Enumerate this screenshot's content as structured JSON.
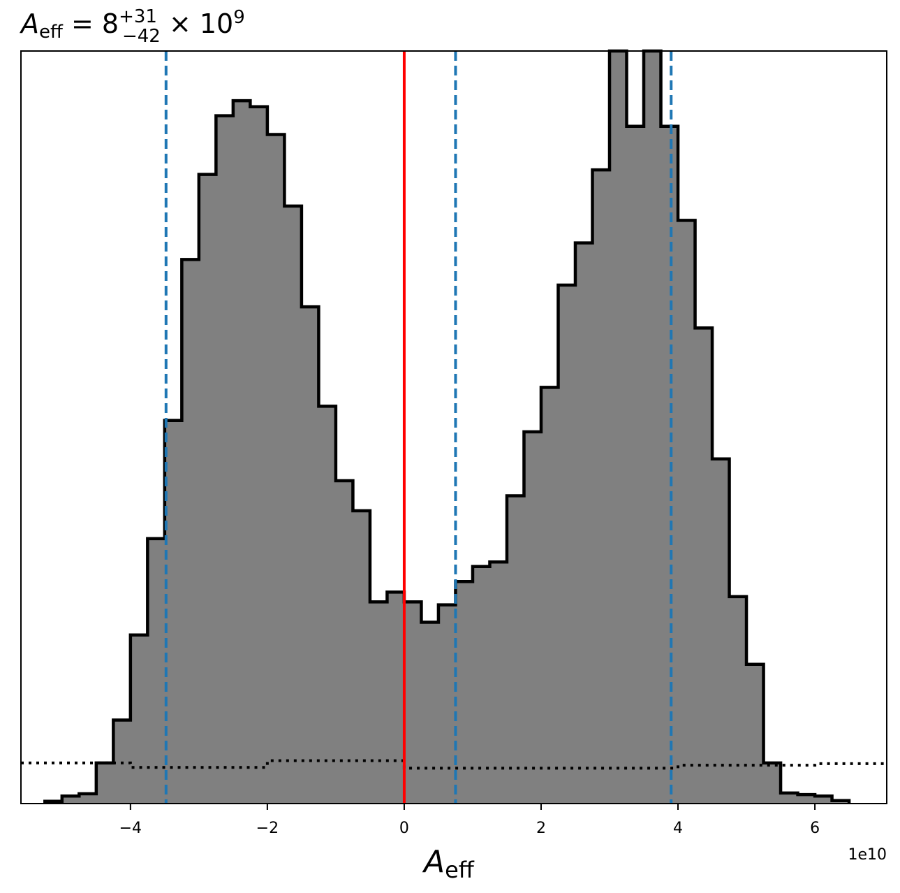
{
  "chart_data": {
    "type": "histogram",
    "title": {
      "symbol": "A",
      "symbol_sub": "eff",
      "equals": " = 8",
      "sup": "+31",
      "sub": "−42",
      "tail": " × 10",
      "tail_sup": "9"
    },
    "xlabel": {
      "symbol": "A",
      "sub": "eff"
    },
    "ylabel": "",
    "x_offset_label": "1e10",
    "xlim": [
      -5.6,
      7.05
    ],
    "ylim": [
      0,
      1.0
    ],
    "xticks": [
      -4,
      -2,
      0,
      2,
      4,
      6
    ],
    "xtick_labels": [
      "−4",
      "−2",
      "0",
      "2",
      "4",
      "6"
    ],
    "yticks_shown": false,
    "bin_edges": [
      -5.25,
      -5.0,
      -4.75,
      -4.5,
      -4.25,
      -4.0,
      -3.75,
      -3.5,
      -3.25,
      -3.0,
      -2.75,
      -2.5,
      -2.25,
      -2.0,
      -1.75,
      -1.5,
      -1.25,
      -1.0,
      -0.75,
      -0.5,
      -0.25,
      0.0,
      0.25,
      0.5,
      0.75,
      1.0,
      1.25,
      1.5,
      1.75,
      2.0,
      2.25,
      2.5,
      2.75,
      3.0,
      3.25,
      3.5,
      3.75,
      4.0,
      4.25,
      4.5,
      4.75,
      5.0,
      5.25,
      5.5,
      5.75,
      6.0,
      6.25,
      6.5
    ],
    "counts": [
      0.003,
      0.01,
      0.013,
      0.054,
      0.111,
      0.224,
      0.352,
      0.509,
      0.723,
      0.836,
      0.914,
      0.934,
      0.926,
      0.889,
      0.794,
      0.66,
      0.528,
      0.429,
      0.389,
      0.268,
      0.281,
      0.268,
      0.241,
      0.264,
      0.295,
      0.315,
      0.321,
      0.409,
      0.494,
      0.553,
      0.689,
      0.745,
      0.842,
      1.002,
      0.9,
      1.002,
      0.9,
      0.775,
      0.632,
      0.458,
      0.275,
      0.185,
      0.054,
      0.014,
      0.012,
      0.01,
      0.004
    ],
    "prior_line": {
      "style": "dotted",
      "color": "#000000",
      "segments": [
        {
          "x0": -5.6,
          "x1": -4.0,
          "y": 0.054
        },
        {
          "x0": -4.0,
          "x1": -2.0,
          "y": 0.048
        },
        {
          "x0": -2.0,
          "x1": 0.0,
          "y": 0.057
        },
        {
          "x0": 0.0,
          "x1": 4.0,
          "y": 0.047
        },
        {
          "x0": 4.0,
          "x1": 6.0,
          "y": 0.051
        },
        {
          "x0": 6.0,
          "x1": 7.05,
          "y": 0.053
        }
      ]
    },
    "vlines": [
      {
        "x": 0.0,
        "color": "#ff0000",
        "style": "solid",
        "role": "true value"
      },
      {
        "x": -3.48,
        "color": "#1f77b4",
        "style": "dashed",
        "role": "lower bound"
      },
      {
        "x": 0.75,
        "color": "#1f77b4",
        "style": "dashed",
        "role": "median"
      },
      {
        "x": 3.9,
        "color": "#1f77b4",
        "style": "dashed",
        "role": "upper bound"
      }
    ],
    "fill_color": "#808080",
    "edge_color": "#000000",
    "grid": false,
    "legend": false
  }
}
